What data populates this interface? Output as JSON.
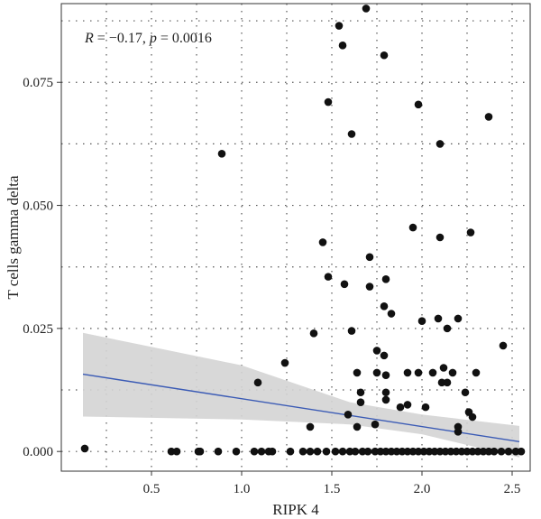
{
  "chart_data": {
    "type": "scatter",
    "title": "",
    "xlabel": "RIPK 4",
    "ylabel": "T cells gamma delta",
    "annotation": {
      "r_label": "R",
      "r_value": " = −0.17, ",
      "p_label": "p",
      "p_value": " = 0.0016"
    },
    "xlim": [
      0.0,
      2.6
    ],
    "ylim": [
      -0.004,
      0.091
    ],
    "xticks": [
      0.5,
      1.0,
      1.5,
      2.0,
      2.5
    ],
    "xtick_labels": [
      "0.5",
      "1.0",
      "1.5",
      "2.0",
      "2.5"
    ],
    "yticks": [
      0.0,
      0.025,
      0.05,
      0.075
    ],
    "ytick_labels": [
      "0.000",
      "0.025",
      "0.050",
      "0.075"
    ],
    "grid": true,
    "colors": {
      "points": "#111111",
      "fit_line": "#3b5bb5",
      "confidence_band": "#d4d4d4"
    },
    "fit_line": {
      "x": [
        0.12,
        2.54
      ],
      "y": [
        0.0157,
        0.002
      ]
    },
    "confidence_band": {
      "x": [
        0.12,
        1.0,
        1.6,
        2.0,
        2.54
      ],
      "lower": [
        0.0071,
        0.0065,
        0.0055,
        0.0035,
        -0.0012
      ],
      "upper": [
        0.0241,
        0.0175,
        0.01,
        0.0075,
        0.0052
      ]
    },
    "points": {
      "x": [
        1.69,
        1.54,
        1.56,
        1.79,
        1.48,
        1.98,
        1.61,
        2.37,
        2.1,
        0.89,
        1.95,
        2.1,
        2.27,
        1.45,
        1.71,
        1.8,
        1.48,
        1.57,
        1.71,
        1.79,
        1.83,
        2.0,
        2.09,
        2.2,
        1.61,
        1.4,
        2.45,
        1.75,
        1.79,
        2.14,
        1.24,
        1.75,
        1.8,
        1.92,
        1.98,
        2.06,
        2.12,
        2.17,
        2.3,
        1.09,
        1.64,
        1.8,
        1.66,
        1.88,
        2.02,
        2.11,
        2.26,
        1.59,
        1.66,
        1.74,
        1.92,
        2.14,
        2.24,
        2.28,
        1.38,
        1.64,
        1.8,
        2.2,
        2.2,
        0.13,
        0.61,
        0.64,
        0.76,
        0.77,
        0.87,
        0.97,
        1.07,
        1.11,
        1.15,
        1.17,
        1.27,
        1.34,
        1.38,
        1.42,
        1.47,
        1.52,
        1.56,
        1.6,
        1.63,
        1.67,
        1.7,
        1.74,
        1.77,
        1.8,
        1.83,
        1.86,
        1.89,
        1.92,
        1.95,
        1.98,
        2.01,
        2.04,
        2.07,
        2.1,
        2.13,
        2.16,
        2.19,
        2.22,
        2.25,
        2.28,
        2.31,
        2.34,
        2.37,
        2.4,
        2.44,
        2.48,
        2.52,
        2.55
      ],
      "y": [
        0.09,
        0.0865,
        0.0825,
        0.0805,
        0.071,
        0.0705,
        0.0645,
        0.068,
        0.0625,
        0.0605,
        0.0455,
        0.0435,
        0.0445,
        0.0425,
        0.0395,
        0.035,
        0.0355,
        0.034,
        0.0335,
        0.0295,
        0.028,
        0.0265,
        0.027,
        0.027,
        0.0245,
        0.024,
        0.0215,
        0.0205,
        0.0195,
        0.025,
        0.018,
        0.016,
        0.0155,
        0.016,
        0.016,
        0.016,
        0.017,
        0.016,
        0.016,
        0.014,
        0.016,
        0.012,
        0.012,
        0.009,
        0.009,
        0.014,
        0.008,
        0.0075,
        0.01,
        0.0055,
        0.0095,
        0.014,
        0.012,
        0.007,
        0.005,
        0.005,
        0.0105,
        0.004,
        0.005,
        0.0006,
        0.0,
        0.0,
        0.0,
        0.0,
        0.0,
        0.0,
        0.0,
        0.0,
        0.0,
        0.0,
        0.0,
        0.0,
        0.0,
        0.0,
        0.0,
        0.0,
        0.0,
        0.0,
        0.0,
        0.0,
        0.0,
        0.0,
        0.0,
        0.0,
        0.0,
        0.0,
        0.0,
        0.0,
        0.0,
        0.0,
        0.0,
        0.0,
        0.0,
        0.0,
        0.0,
        0.0,
        0.0,
        0.0,
        0.0,
        0.0,
        0.0,
        0.0,
        0.0,
        0.0,
        0.0,
        0.0,
        0.0,
        0.0
      ]
    }
  }
}
